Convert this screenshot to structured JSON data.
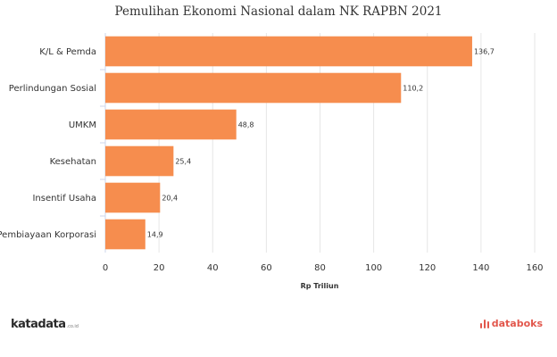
{
  "chart_data": {
    "type": "bar",
    "orientation": "horizontal",
    "title": "Pemulihan Ekonomi Nasional dalam NK RAPBN 2021",
    "categories": [
      "K/L & Pemda",
      "Perlindungan Sosial",
      "UMKM",
      "Kesehatan",
      "Insentif Usaha",
      "Pembiayaan Korporasi"
    ],
    "values": [
      136.7,
      110.2,
      48.8,
      25.4,
      20.4,
      14.9
    ],
    "value_labels": [
      "136,7",
      "110,2",
      "48,8",
      "25,4",
      "20,4",
      "14,9"
    ],
    "xlabel": "Rp Triliun",
    "ylabel": "",
    "xlim": [
      0,
      160
    ],
    "xticks": [
      0,
      20,
      40,
      60,
      80,
      100,
      120,
      140,
      160
    ],
    "grid": true,
    "bar_color": "#f68d4e"
  },
  "footer": {
    "left_brand": "katadata",
    "left_brand_suffix": ".co.id",
    "right_brand": "databoks"
  }
}
